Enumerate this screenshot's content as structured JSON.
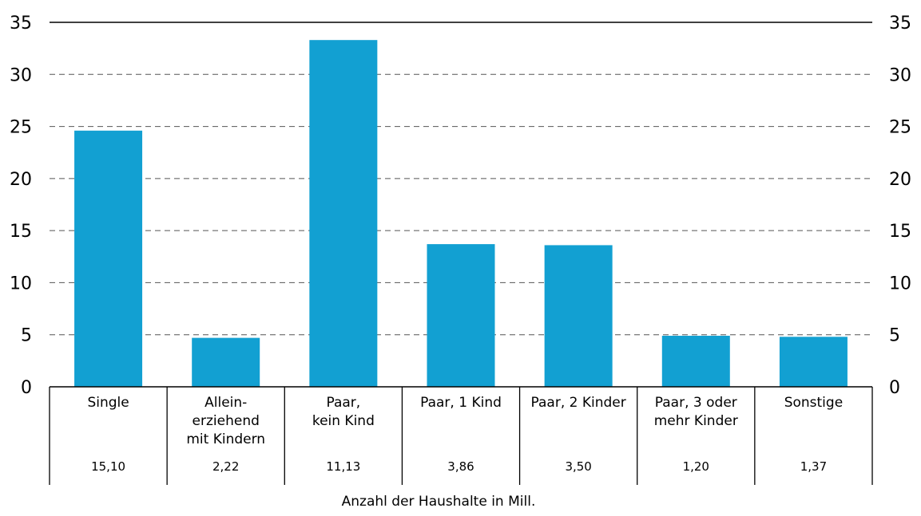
{
  "chart_data": {
    "type": "bar",
    "title": "",
    "xlabel": "Anzahl der Haushalte in Mill.",
    "ylabel": "",
    "ylim": [
      0,
      35
    ],
    "yticks": [
      0,
      5,
      10,
      15,
      20,
      25,
      30,
      35
    ],
    "y_axis_sides": [
      "left",
      "right"
    ],
    "grid": "dashed-horizontal",
    "bar_color": "#12a0d2",
    "categories": [
      [
        "Single"
      ],
      [
        "Allein-",
        "erziehend",
        "mit Kindern"
      ],
      [
        "Paar,",
        "kein Kind"
      ],
      [
        "Paar, 1 Kind"
      ],
      [
        "Paar, 2 Kinder"
      ],
      [
        "Paar, 3 oder",
        "mehr Kinder"
      ],
      [
        "Sonstige"
      ]
    ],
    "values": [
      24.6,
      4.7,
      33.3,
      13.7,
      13.6,
      4.9,
      4.8
    ],
    "household_counts": [
      "15,10",
      "2,22",
      "11,13",
      "3,86",
      "3,50",
      "1,20",
      "1,37"
    ]
  }
}
